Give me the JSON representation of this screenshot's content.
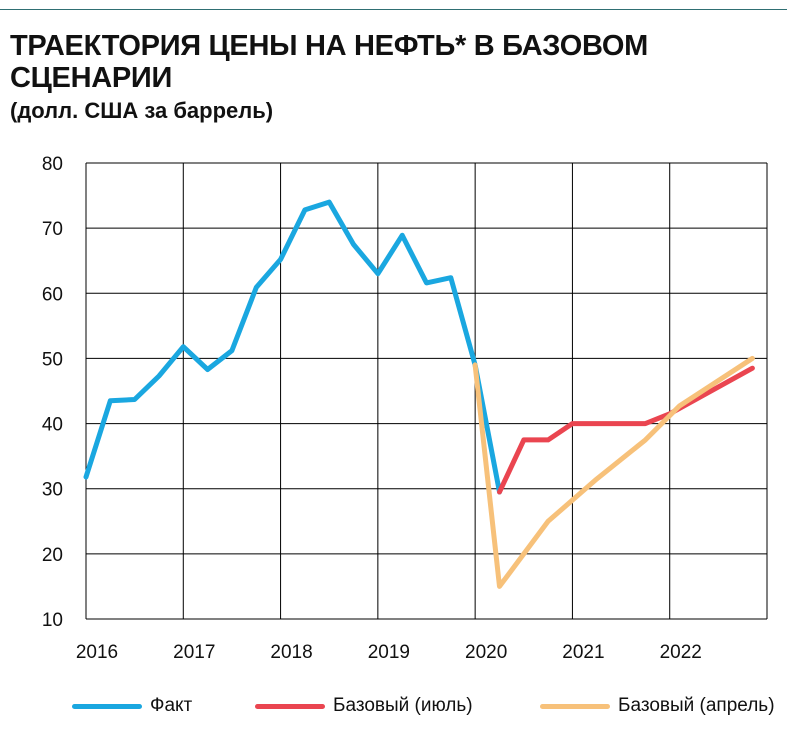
{
  "header": {
    "title": "ТРАЕКТОРИЯ ЦЕНЫ НА НЕФТЬ* В БАЗОВОМ СЦЕНАРИИ",
    "subtitle": "(долл. США за баррель)"
  },
  "chart_data": {
    "type": "line",
    "title": "ТРАЕКТОРИЯ ЦЕНЫ НА НЕФТЬ* В БАЗОВОМ СЦЕНАРИИ",
    "ylabel": "(долл. США за баррель)",
    "xlim": [
      2016,
      2023
    ],
    "ylim": [
      10,
      80
    ],
    "x_ticks": [
      "2016",
      "2017",
      "2018",
      "2019",
      "2020",
      "2021",
      "2022"
    ],
    "y_ticks": [
      "10",
      "20",
      "30",
      "40",
      "50",
      "60",
      "70",
      "80"
    ],
    "grid": true,
    "legend_position": "bottom",
    "series": [
      {
        "name": "Факт",
        "color": "#1aa7e0",
        "points": [
          [
            2016.0,
            31.8
          ],
          [
            2016.25,
            43.5
          ],
          [
            2016.5,
            43.7
          ],
          [
            2016.75,
            47.3
          ],
          [
            2017.0,
            51.8
          ],
          [
            2017.25,
            48.3
          ],
          [
            2017.5,
            51.2
          ],
          [
            2017.75,
            60.9
          ],
          [
            2018.0,
            65.2
          ],
          [
            2018.25,
            72.8
          ],
          [
            2018.5,
            74.0
          ],
          [
            2018.75,
            67.5
          ],
          [
            2019.0,
            63.0
          ],
          [
            2019.25,
            68.9
          ],
          [
            2019.5,
            61.6
          ],
          [
            2019.75,
            62.4
          ],
          [
            2020.0,
            49.0
          ],
          [
            2020.25,
            29.5
          ]
        ]
      },
      {
        "name": "Базовый (июль)",
        "color": "#ea4550",
        "points": [
          [
            2020.25,
            29.5
          ],
          [
            2020.5,
            37.5
          ],
          [
            2020.75,
            37.5
          ],
          [
            2021.0,
            40.0
          ],
          [
            2021.25,
            40.0
          ],
          [
            2021.5,
            40.0
          ],
          [
            2021.75,
            40.0
          ],
          [
            2022.0,
            41.5
          ],
          [
            2022.85,
            48.5
          ]
        ]
      },
      {
        "name": "Базовый (апрель)",
        "color": "#f7c17a",
        "points": [
          [
            2020.0,
            49.0
          ],
          [
            2020.25,
            15.0
          ],
          [
            2020.75,
            25.0
          ],
          [
            2021.25,
            31.5
          ],
          [
            2021.75,
            37.5
          ],
          [
            2022.1,
            42.7
          ],
          [
            2022.85,
            50.0
          ]
        ]
      }
    ]
  }
}
